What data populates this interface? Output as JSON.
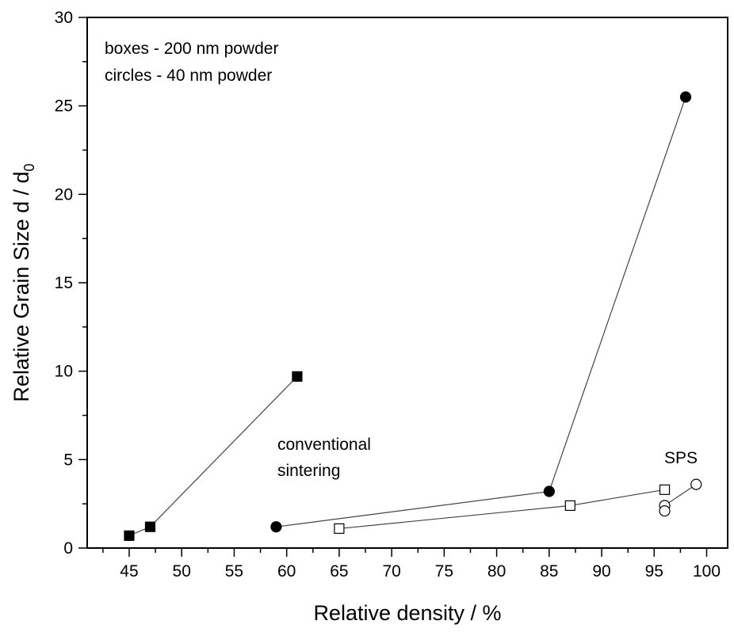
{
  "chart_data": {
    "type": "scatter",
    "xlabel": "Relative density / %",
    "ylabel": "Relative Grain Size d / d",
    "ylabel_subscript": "0",
    "xlim": [
      41,
      102
    ],
    "ylim": [
      0,
      30
    ],
    "xticks": [
      45,
      50,
      55,
      60,
      65,
      70,
      75,
      80,
      85,
      90,
      95,
      100
    ],
    "yticks": [
      0,
      5,
      10,
      15,
      20,
      25,
      30
    ],
    "grid": false,
    "colors": {
      "line": "#444444",
      "marker_edge": "#000000",
      "filled": "#000000",
      "open": "#ffffff"
    },
    "series": [
      {
        "marker": "square",
        "fill": "filled",
        "connected": true,
        "points": [
          {
            "x": 45,
            "y": 0.7
          },
          {
            "x": 47,
            "y": 1.2
          },
          {
            "x": 61,
            "y": 9.7
          }
        ]
      },
      {
        "marker": "circle",
        "fill": "filled",
        "connected": true,
        "points": [
          {
            "x": 59,
            "y": 1.2
          },
          {
            "x": 85,
            "y": 3.2
          },
          {
            "x": 98,
            "y": 25.5
          }
        ]
      },
      {
        "marker": "square",
        "fill": "open",
        "connected": true,
        "points": [
          {
            "x": 65,
            "y": 1.1
          },
          {
            "x": 87,
            "y": 2.4
          },
          {
            "x": 96,
            "y": 3.3
          }
        ]
      },
      {
        "marker": "circle",
        "fill": "open",
        "connected": true,
        "points": [
          {
            "x": 96,
            "y": 2.4
          },
          {
            "x": 99,
            "y": 3.6
          }
        ]
      },
      {
        "marker": "circle",
        "fill": "open",
        "connected": false,
        "points": [
          {
            "x": 96,
            "y": 2.1
          }
        ]
      }
    ],
    "annotations": [
      {
        "lines": [
          "boxes - 200 nm powder",
          "circles - 40 nm powder"
        ]
      },
      {
        "lines": [
          "conventional",
          "sintering"
        ]
      },
      {
        "lines": [
          "SPS"
        ]
      }
    ]
  }
}
